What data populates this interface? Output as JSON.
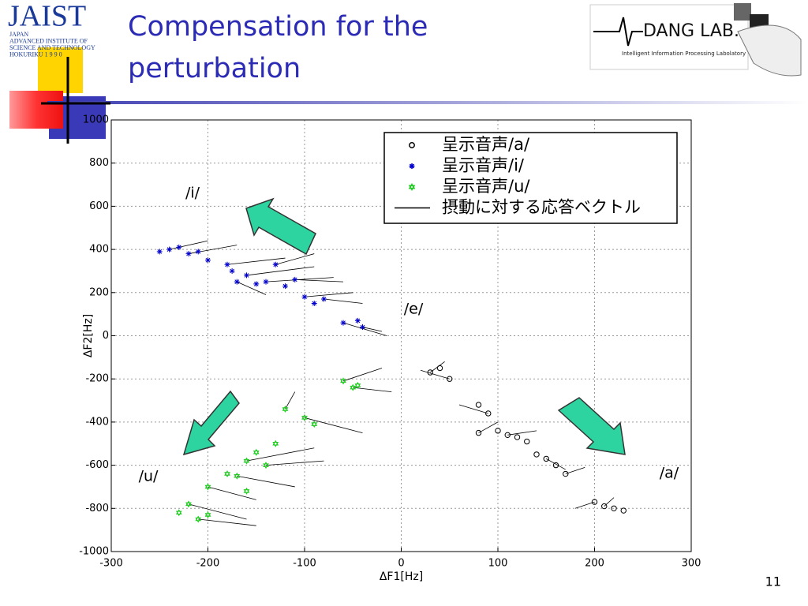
{
  "header": {
    "title": "Compensation for the perturbation",
    "left_logo": {
      "name": "JAIST",
      "lines": [
        "JAPAN",
        "ADVANCED INSTITUTE OF",
        "SCIENCE AND TECHNOLOGY",
        "HOKURIKU 1 9 9 0"
      ]
    },
    "right_logo": {
      "name": "DANG LAB.",
      "subtitle": "Intelligent Information Processing Labolatory"
    }
  },
  "page_number": "11",
  "chart_data": {
    "type": "scatter",
    "xlabel": "ΔF1[Hz]",
    "ylabel": "ΔF2[Hz]",
    "xlim": [
      -300,
      300
    ],
    "xticks": [
      -300,
      -200,
      -100,
      0,
      100,
      200,
      300
    ],
    "ylim": [
      -1000,
      1000
    ],
    "yticks": [
      -1000,
      -800,
      -600,
      -400,
      -200,
      0,
      200,
      400,
      600,
      800,
      1000
    ],
    "grid": true,
    "annotations": [
      "/i/",
      "/e/",
      "/u/",
      "/a/"
    ],
    "series": [
      {
        "name": "呈示音声/a/",
        "color": "#000000",
        "marker": "o",
        "x": [
          30,
          40,
          50,
          80,
          90,
          100,
          110,
          120,
          130,
          140,
          150,
          160,
          170,
          200,
          210,
          220,
          230,
          80
        ],
        "y": [
          -170,
          -150,
          -200,
          -320,
          -360,
          -440,
          -460,
          -470,
          -490,
          -550,
          -570,
          -600,
          -640,
          -770,
          -790,
          -800,
          -810,
          -450
        ]
      },
      {
        "name": "呈示音声/i/",
        "color": "#0000cc",
        "marker": "*",
        "x": [
          -250,
          -240,
          -230,
          -220,
          -210,
          -200,
          -180,
          -175,
          -170,
          -160,
          -150,
          -140,
          -130,
          -120,
          -110,
          -100,
          -90,
          -80,
          -60,
          -45,
          -40
        ],
        "y": [
          390,
          400,
          410,
          380,
          390,
          350,
          330,
          300,
          250,
          280,
          240,
          250,
          330,
          230,
          260,
          180,
          150,
          170,
          60,
          70,
          40
        ]
      },
      {
        "name": "呈示音声/u/",
        "color": "#22cc22",
        "marker": "hexagram",
        "x": [
          -60,
          -50,
          -45,
          -120,
          -100,
          -90,
          -130,
          -150,
          -140,
          -160,
          -170,
          -180,
          -160,
          -200,
          -220,
          -230,
          -210,
          -200
        ],
        "y": [
          -210,
          -240,
          -230,
          -340,
          -380,
          -410,
          -500,
          -540,
          -600,
          -580,
          -650,
          -640,
          -720,
          -700,
          -780,
          -820,
          -850,
          -830
        ]
      },
      {
        "name": "摂動に対する応答ベクトル",
        "color": "#000000",
        "marker": "vector",
        "x": [
          -240,
          -220,
          -180,
          -160,
          -140,
          -130,
          -110,
          -100,
          -80,
          -60,
          -40,
          -170,
          -50,
          -60,
          -100,
          -120,
          -140,
          -160,
          -170,
          -200,
          -220,
          -210,
          30,
          50,
          90,
          110,
          80,
          150,
          170,
          210,
          200
        ],
        "y": [
          400,
          380,
          330,
          280,
          250,
          330,
          260,
          180,
          170,
          60,
          40,
          250,
          -240,
          -210,
          -380,
          -340,
          -600,
          -580,
          -650,
          -700,
          -780,
          -850,
          -170,
          -200,
          -360,
          -460,
          -450,
          -570,
          -640,
          -790,
          -770
        ],
        "x2": [
          -200,
          -170,
          -120,
          -90,
          -70,
          -90,
          -60,
          -50,
          -40,
          -15,
          -20,
          -140,
          -10,
          -20,
          -40,
          -110,
          -80,
          -90,
          -110,
          -150,
          -160,
          -150,
          45,
          20,
          60,
          140,
          100,
          170,
          190,
          220,
          180
        ],
        "y2": [
          440,
          420,
          360,
          320,
          270,
          380,
          250,
          200,
          150,
          0,
          20,
          190,
          -260,
          -150,
          -450,
          -260,
          -580,
          -520,
          -700,
          -760,
          -850,
          -880,
          -120,
          -160,
          -320,
          -440,
          -400,
          -620,
          -610,
          -750,
          -800
        ]
      }
    ]
  }
}
